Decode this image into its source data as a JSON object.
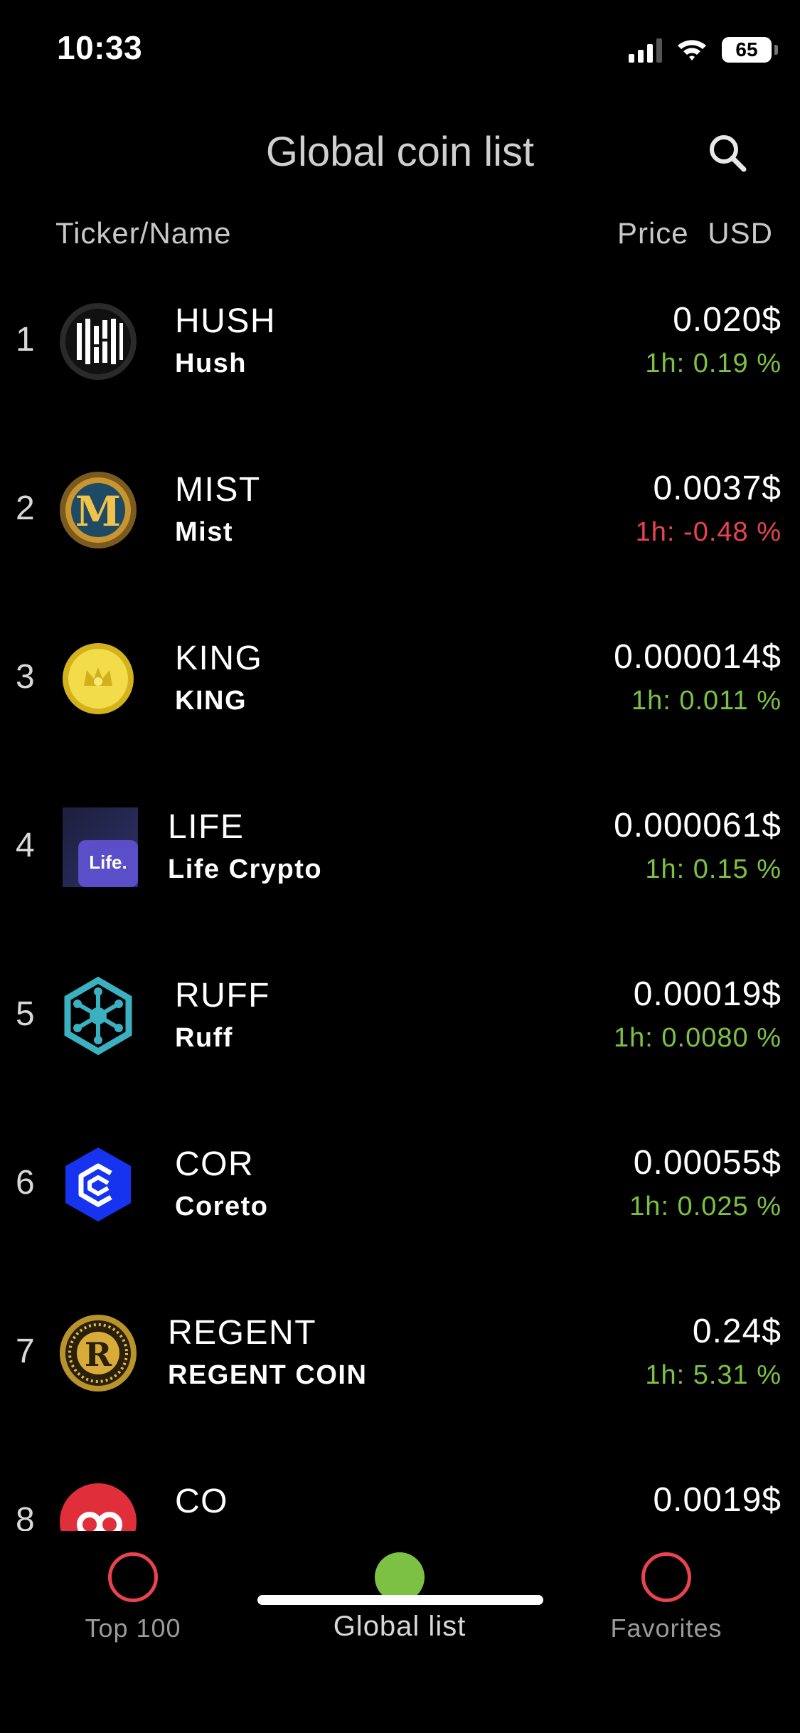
{
  "status_bar": {
    "time": "10:33",
    "battery": "65"
  },
  "header": {
    "title": "Global coin list"
  },
  "columns": {
    "ticker_name": "Ticker/Name",
    "price": "Price USD"
  },
  "coins": [
    {
      "rank": "1",
      "ticker": "HUSH",
      "name": "Hush",
      "price": "0.020$",
      "change": "1h: 0.19 %",
      "direction": "up",
      "logo_icon": "hush-logo-icon"
    },
    {
      "rank": "2",
      "ticker": "MIST",
      "name": "Mist",
      "price": "0.0037$",
      "change": "1h: -0.48 %",
      "direction": "down",
      "logo_icon": "mist-logo-icon"
    },
    {
      "rank": "3",
      "ticker": "KING",
      "name": "KING",
      "price": "0.000014$",
      "change": "1h: 0.011 %",
      "direction": "up",
      "logo_icon": "king-logo-icon"
    },
    {
      "rank": "4",
      "ticker": "LIFE",
      "name": "Life Crypto",
      "price": "0.000061$",
      "change": "1h: 0.15 %",
      "direction": "up",
      "logo_icon": "life-logo-icon",
      "logo_text": "Life."
    },
    {
      "rank": "5",
      "ticker": "RUFF",
      "name": "Ruff",
      "price": "0.00019$",
      "change": "1h: 0.0080 %",
      "direction": "up",
      "logo_icon": "ruff-logo-icon"
    },
    {
      "rank": "6",
      "ticker": "COR",
      "name": "Coreto",
      "price": "0.00055$",
      "change": "1h: 0.025 %",
      "direction": "up",
      "logo_icon": "coreto-logo-icon"
    },
    {
      "rank": "7",
      "ticker": "REGENT",
      "name": "REGENT COIN",
      "price": "0.24$",
      "change": "1h: 5.31 %",
      "direction": "up",
      "logo_icon": "regent-logo-icon"
    },
    {
      "rank": "8",
      "ticker": "CO",
      "name": "",
      "price": "0.0019$",
      "change": "",
      "direction": "up",
      "logo_icon": "co-logo-icon"
    }
  ],
  "nav": {
    "top100": "Top 100",
    "global": "Global list",
    "favorites": "Favorites",
    "active": "global"
  },
  "colors": {
    "up": "#7cc143",
    "down": "#e8434f",
    "background": "#000000"
  }
}
